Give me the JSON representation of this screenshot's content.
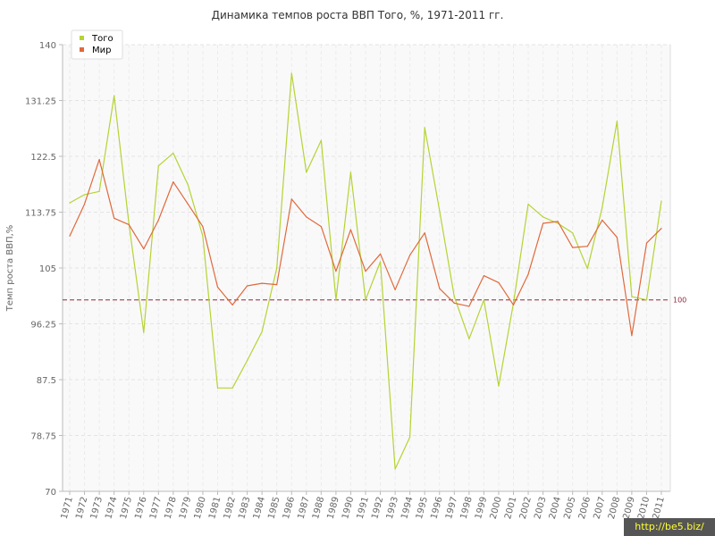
{
  "chart_data": {
    "type": "line",
    "title": "Динамика темпов роста ВВП Того, %, 1971-2011 гг.",
    "xlabel": "",
    "ylabel": "Темп роста ВВП,%",
    "ylim": [
      70,
      140
    ],
    "yticks": [
      "70",
      "78.75",
      "87.5",
      "96.25",
      "105",
      "113.75",
      "122.5",
      "131.25",
      "140"
    ],
    "grid": true,
    "legend_position": "top-left",
    "reference_line": {
      "value": 100,
      "label": "100",
      "color": "#8b2a3d"
    },
    "x": [
      "1971",
      "1972",
      "1973",
      "1974",
      "1975",
      "1976",
      "1977",
      "1978",
      "1979",
      "1980",
      "1981",
      "1982",
      "1983",
      "1984",
      "1985",
      "1986",
      "1987",
      "1988",
      "1989",
      "1990",
      "1991",
      "1992",
      "1993",
      "1994",
      "1995",
      "1996",
      "1997",
      "1998",
      "1999",
      "2000",
      "2001",
      "2002",
      "2003",
      "2004",
      "2005",
      "2006",
      "2007",
      "2008",
      "2009",
      "2010",
      "2011"
    ],
    "series": [
      {
        "name": "Того",
        "color": "#b5d334",
        "values": [
          115.2,
          116.5,
          117.0,
          132.0,
          112.0,
          94.9,
          121.0,
          123.0,
          118.0,
          110.0,
          86.2,
          86.2,
          90.5,
          95.0,
          105.0,
          135.5,
          120.0,
          125.0,
          100.0,
          120.0,
          100.0,
          106.0,
          73.5,
          78.5,
          127.0,
          114.0,
          100.5,
          93.9,
          100.0,
          86.5,
          99.5,
          115.0,
          113.0,
          112.0,
          110.5,
          104.9,
          114.5,
          128.0,
          100.5,
          100.0,
          115.5
        ]
      },
      {
        "name": "Мир",
        "color": "#e0693c",
        "values": [
          110.0,
          115.0,
          122.0,
          112.8,
          111.8,
          108.0,
          112.5,
          118.5,
          115.0,
          111.5,
          102.0,
          99.2,
          102.2,
          102.6,
          102.4,
          115.8,
          113.0,
          111.5,
          104.5,
          111.0,
          104.5,
          107.2,
          101.6,
          107.0,
          110.5,
          101.8,
          99.5,
          99.0,
          103.8,
          102.7,
          99.2,
          104.0,
          112.0,
          112.3,
          108.2,
          108.4,
          112.5,
          109.8,
          94.4,
          108.9,
          111.2
        ]
      }
    ]
  },
  "watermark": "http://be5.biz/"
}
